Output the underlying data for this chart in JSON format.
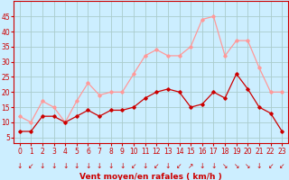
{
  "hours": [
    0,
    1,
    2,
    3,
    4,
    5,
    6,
    7,
    8,
    9,
    10,
    11,
    12,
    13,
    14,
    15,
    16,
    17,
    18,
    19,
    20,
    21,
    22,
    23
  ],
  "wind_avg": [
    7,
    7,
    12,
    12,
    10,
    12,
    14,
    12,
    14,
    14,
    15,
    18,
    20,
    21,
    20,
    15,
    16,
    20,
    18,
    26,
    21,
    15,
    13,
    7
  ],
  "wind_gust": [
    12,
    10,
    17,
    15,
    10,
    17,
    23,
    19,
    20,
    20,
    26,
    32,
    34,
    32,
    32,
    35,
    44,
    45,
    32,
    37,
    37,
    28,
    20,
    20
  ],
  "bg_color": "#cceeff",
  "grid_color": "#aacccc",
  "line_avg_color": "#cc0000",
  "line_gust_color": "#ff9999",
  "xlabel": "Vent moyen/en rafales ( km/h )",
  "ylim": [
    3,
    50
  ],
  "yticks": [
    5,
    10,
    15,
    20,
    25,
    30,
    35,
    40,
    45
  ],
  "xticks": [
    0,
    1,
    2,
    3,
    4,
    5,
    6,
    7,
    8,
    9,
    10,
    11,
    12,
    13,
    14,
    15,
    16,
    17,
    18,
    19,
    20,
    21,
    22,
    23
  ],
  "arrow_directions": [
    "↓",
    "↙",
    "↓",
    "↓",
    "↓",
    "↓",
    "↓",
    "↓",
    "↓",
    "↓",
    "↙",
    "↓",
    "↙",
    "↓",
    "↙",
    "↗",
    "↓",
    "↓",
    "↘",
    "↘",
    "↘",
    "↓",
    "↙",
    "↙"
  ],
  "arrow_color": "#cc0000",
  "xlabel_color": "#cc0000",
  "tick_color": "#cc0000",
  "axis_color": "#cc0000",
  "tick_fontsize": 5.5,
  "arrow_fontsize": 5.5,
  "xlabel_fontsize": 6.5
}
